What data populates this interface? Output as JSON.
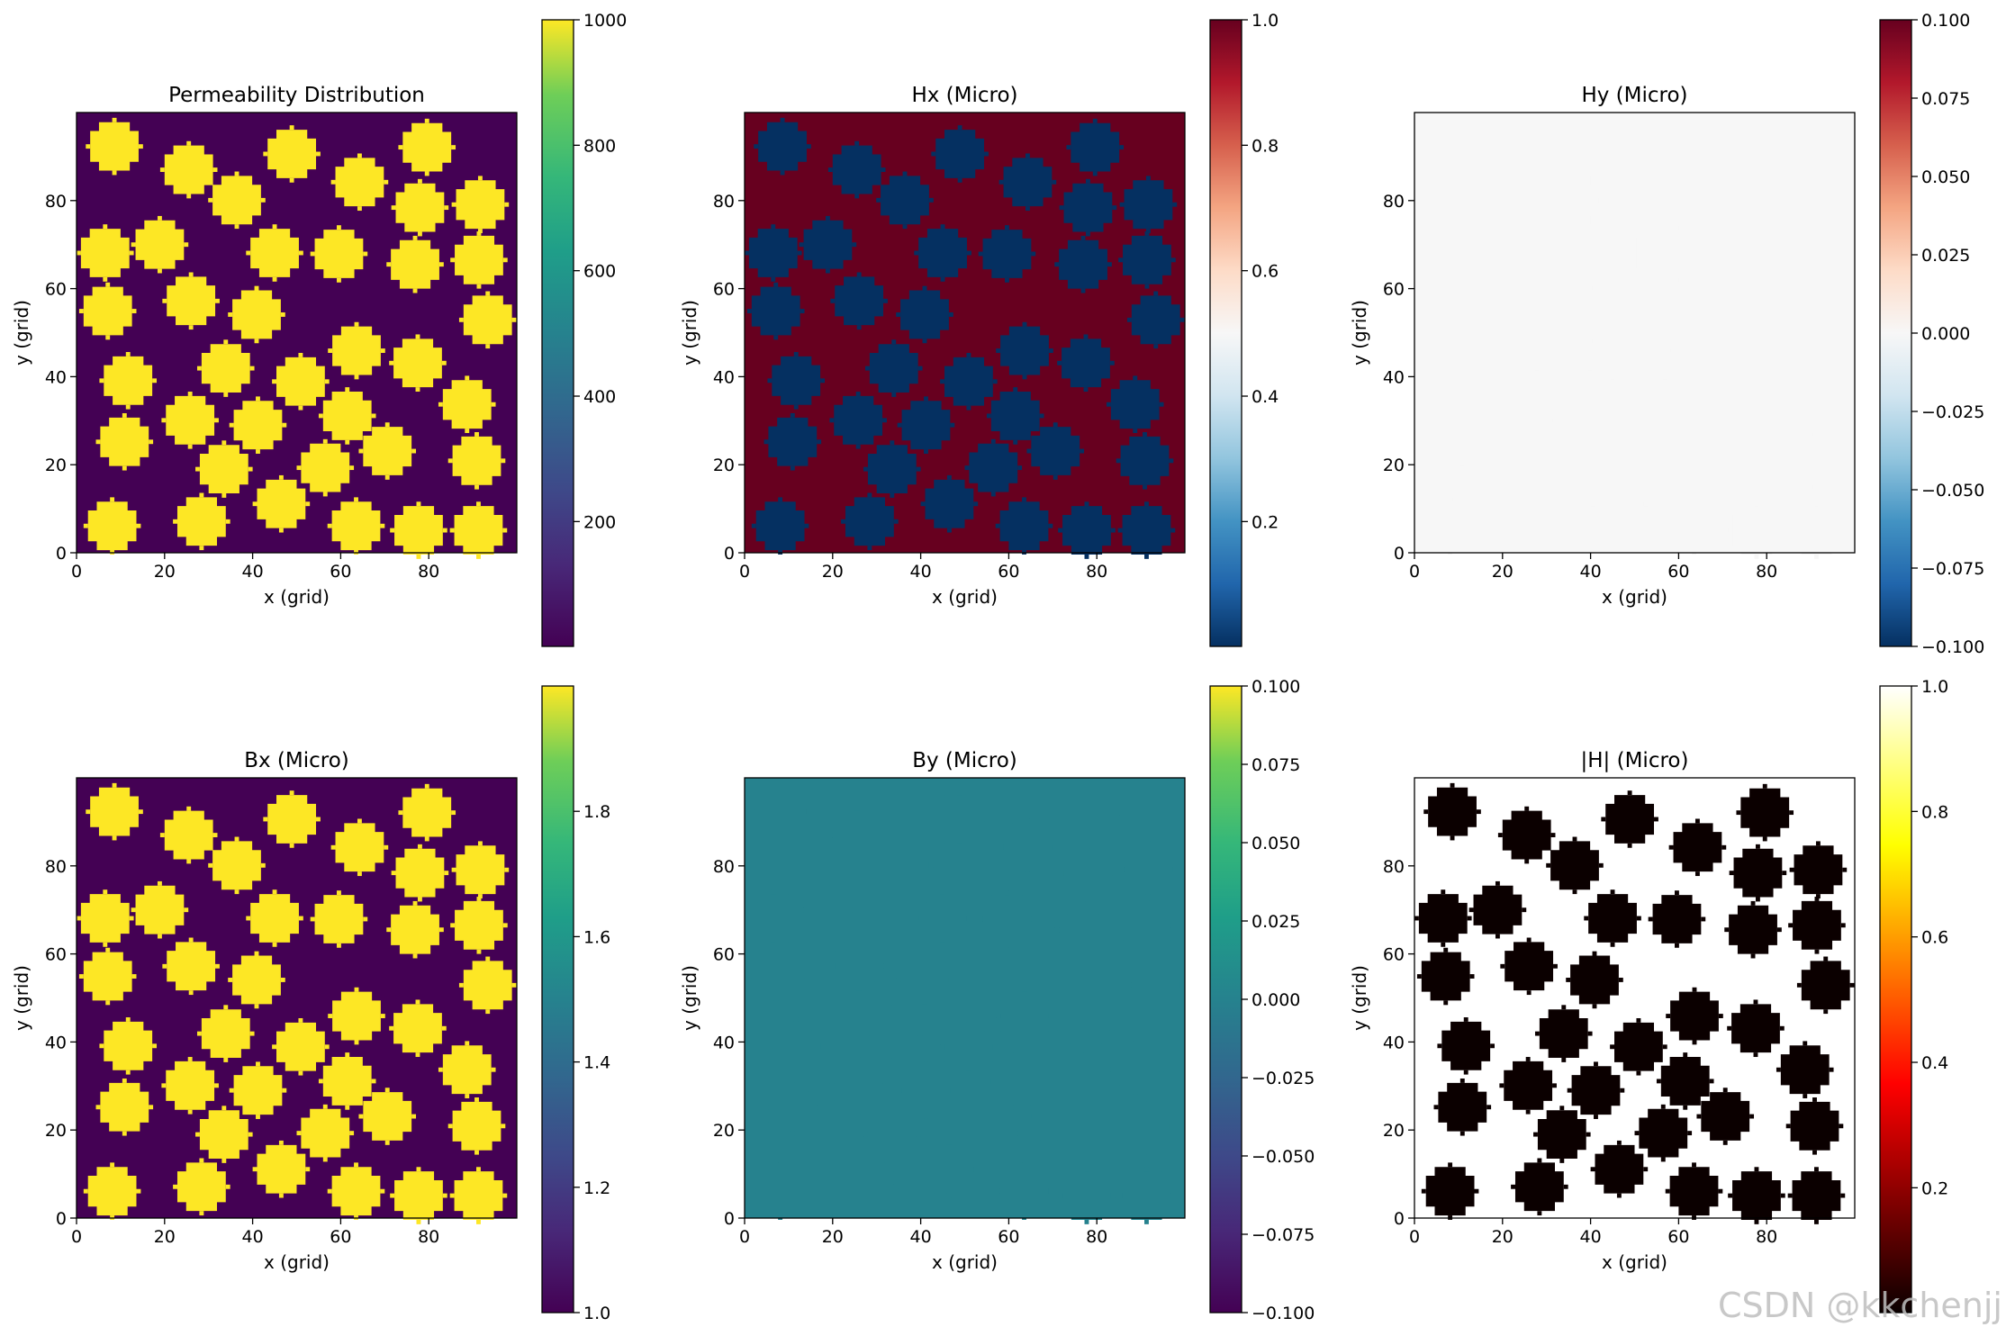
{
  "figure": {
    "watermark": "CSDN @kkchenjj"
  },
  "inclusions": [
    [
      8.6,
      92.3
    ],
    [
      25.5,
      87.0
    ],
    [
      36.4,
      80.1
    ],
    [
      48.9,
      90.6
    ],
    [
      64.3,
      84.2
    ],
    [
      79.6,
      92.1
    ],
    [
      78.0,
      78.4
    ],
    [
      91.7,
      79.1
    ],
    [
      6.5,
      68.1
    ],
    [
      18.9,
      70.0
    ],
    [
      45.0,
      68.1
    ],
    [
      59.6,
      67.9
    ],
    [
      76.9,
      65.5
    ],
    [
      91.4,
      66.5
    ],
    [
      7.1,
      54.9
    ],
    [
      26.0,
      57.2
    ],
    [
      40.9,
      54.1
    ],
    [
      93.4,
      52.9
    ],
    [
      11.7,
      39.1
    ],
    [
      33.9,
      41.9
    ],
    [
      50.9,
      38.9
    ],
    [
      63.6,
      45.9
    ],
    [
      77.5,
      43.1
    ],
    [
      10.9,
      25.2
    ],
    [
      25.8,
      30.1
    ],
    [
      41.2,
      29.0
    ],
    [
      61.5,
      31.1
    ],
    [
      88.7,
      33.7
    ],
    [
      33.5,
      19.0
    ],
    [
      56.5,
      19.3
    ],
    [
      70.6,
      23.1
    ],
    [
      90.9,
      20.9
    ],
    [
      8.1,
      6.1
    ],
    [
      28.4,
      7.1
    ],
    [
      46.5,
      11.1
    ],
    [
      63.5,
      6.1
    ],
    [
      77.7,
      5.1
    ],
    [
      91.3,
      5.1
    ]
  ],
  "chart_data": [
    {
      "type": "heatmap",
      "id": "perm",
      "title": "Permeability Distribution",
      "xlabel": "x (grid)",
      "ylabel": "y (grid)",
      "xlim": [
        0,
        100
      ],
      "ylim": [
        0,
        100
      ],
      "xticks": [
        0,
        20,
        40,
        60,
        80
      ],
      "yticks": [
        0,
        20,
        40,
        60,
        80
      ],
      "colormap": "viridis",
      "background_value": 1,
      "inclusion_value": 1000,
      "colorbar": {
        "min": 1,
        "max": 1000,
        "ticks": [
          200,
          400,
          600,
          800,
          1000
        ],
        "tick_labels": [
          "200",
          "400",
          "600",
          "800",
          "1000"
        ]
      }
    },
    {
      "type": "heatmap",
      "id": "hx",
      "title": "Hx (Micro)",
      "xlabel": "x (grid)",
      "ylabel": "y (grid)",
      "xlim": [
        0,
        100
      ],
      "ylim": [
        0,
        100
      ],
      "xticks": [
        0,
        20,
        40,
        60,
        80
      ],
      "yticks": [
        0,
        20,
        40,
        60,
        80
      ],
      "colormap": "RdBu_r",
      "background_value": 1.0,
      "inclusion_value": 0.001,
      "colorbar": {
        "min": 0.001,
        "max": 1.0,
        "ticks": [
          0.2,
          0.4,
          0.6,
          0.8,
          1.0
        ],
        "tick_labels": [
          "0.2",
          "0.4",
          "0.6",
          "0.8",
          "1.0"
        ]
      }
    },
    {
      "type": "heatmap",
      "id": "hy",
      "title": "Hy (Micro)",
      "xlabel": "x (grid)",
      "ylabel": "y (grid)",
      "xlim": [
        0,
        100
      ],
      "ylim": [
        0,
        100
      ],
      "xticks": [
        0,
        20,
        40,
        60,
        80
      ],
      "yticks": [
        0,
        20,
        40,
        60,
        80
      ],
      "colormap": "RdBu_r",
      "background_value": 0.0,
      "inclusion_value": 0.0,
      "colorbar": {
        "min": -0.1,
        "max": 0.1,
        "ticks": [
          -0.1,
          -0.075,
          -0.05,
          -0.025,
          0.0,
          0.025,
          0.05,
          0.075,
          0.1
        ],
        "tick_labels": [
          "−0.100",
          "−0.075",
          "−0.050",
          "−0.025",
          "0.000",
          "0.025",
          "0.050",
          "0.075",
          "0.100"
        ]
      }
    },
    {
      "type": "heatmap",
      "id": "bx",
      "title": "Bx (Micro)",
      "xlabel": "x (grid)",
      "ylabel": "y (grid)",
      "xlim": [
        0,
        100
      ],
      "ylim": [
        0,
        100
      ],
      "xticks": [
        0,
        20,
        40,
        60,
        80
      ],
      "yticks": [
        0,
        20,
        40,
        60,
        80
      ],
      "colormap": "viridis",
      "background_value": 1.0,
      "inclusion_value": 2.0,
      "colorbar": {
        "min": 1.0,
        "max": 2.0,
        "ticks": [
          1.0,
          1.2,
          1.4,
          1.6,
          1.8
        ],
        "tick_labels": [
          "1.0",
          "1.2",
          "1.4",
          "1.6",
          "1.8"
        ]
      }
    },
    {
      "type": "heatmap",
      "id": "by",
      "title": "By (Micro)",
      "xlabel": "x (grid)",
      "ylabel": "y (grid)",
      "xlim": [
        0,
        100
      ],
      "ylim": [
        0,
        100
      ],
      "xticks": [
        0,
        20,
        40,
        60,
        80
      ],
      "yticks": [
        0,
        20,
        40,
        60,
        80
      ],
      "colormap": "viridis",
      "background_value": 0.0,
      "inclusion_value": 0.0,
      "colorbar": {
        "min": -0.1,
        "max": 0.1,
        "ticks": [
          -0.1,
          -0.075,
          -0.05,
          -0.025,
          0.0,
          0.025,
          0.05,
          0.075,
          0.1
        ],
        "tick_labels": [
          "−0.100",
          "−0.075",
          "−0.050",
          "−0.025",
          "0.000",
          "0.025",
          "0.050",
          "0.075",
          "0.100"
        ]
      }
    },
    {
      "type": "heatmap",
      "id": "hmag",
      "title": "|H| (Micro)",
      "xlabel": "x (grid)",
      "ylabel": "y (grid)",
      "xlim": [
        0,
        100
      ],
      "ylim": [
        0,
        100
      ],
      "xticks": [
        0,
        20,
        40,
        60,
        80
      ],
      "yticks": [
        0,
        20,
        40,
        60,
        80
      ],
      "colormap": "hot",
      "background_value": 1.0,
      "inclusion_value": 0.001,
      "colorbar": {
        "min": 0.001,
        "max": 1.0,
        "ticks": [
          0.2,
          0.4,
          0.6,
          0.8,
          1.0
        ],
        "tick_labels": [
          "0.2",
          "0.4",
          "0.6",
          "0.8",
          "1.0"
        ]
      }
    }
  ]
}
